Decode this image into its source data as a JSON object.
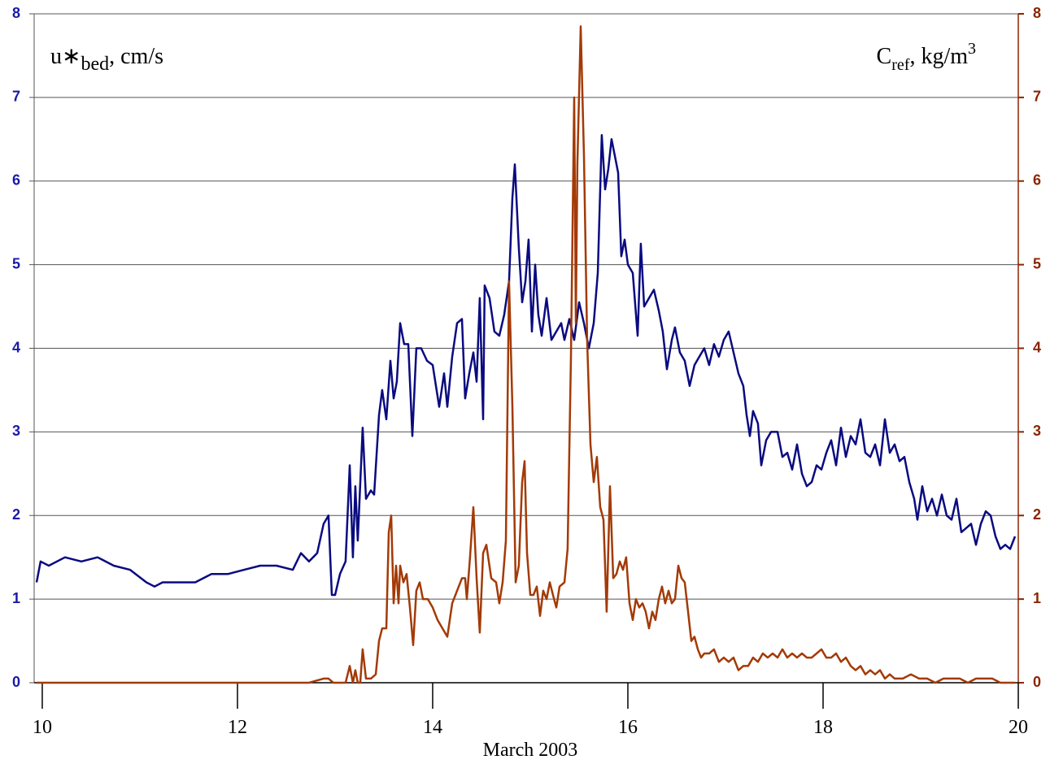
{
  "chart_data": {
    "type": "line",
    "xlabel": "March 2003",
    "ylabel": [
      "u∗",
      "bed",
      ", cm/s"
    ],
    "y2label": [
      "C",
      "ref",
      ", kg/m",
      "3"
    ],
    "xlim": [
      9.917,
      20
    ],
    "xticks": [
      10,
      12,
      14,
      16,
      18,
      20
    ],
    "ylim": [
      0,
      8
    ],
    "yticks": [
      0,
      1,
      2,
      3,
      4,
      5,
      6,
      7,
      8
    ],
    "y2lim": [
      0,
      8
    ],
    "y2ticks": [
      0,
      1,
      2,
      3,
      4,
      5,
      6,
      7,
      8
    ],
    "grid": true,
    "ycolor": "#1a1aa6",
    "y2color": "#8b2500",
    "series": [
      {
        "color": "#0a0a80",
        "axis": "y",
        "x": [
          9.942,
          9.983,
          10.067,
          10.233,
          10.4,
          10.567,
          10.733,
          10.9,
          11.067,
          11.15,
          11.233,
          11.4,
          11.567,
          11.733,
          11.9,
          12.067,
          12.233,
          12.4,
          12.567,
          12.65,
          12.733,
          12.817,
          12.883,
          12.933,
          12.967,
          13.0,
          13.05,
          13.108,
          13.15,
          13.183,
          13.208,
          13.233,
          13.283,
          13.317,
          13.367,
          13.4,
          13.45,
          13.483,
          13.525,
          13.567,
          13.6,
          13.633,
          13.667,
          13.708,
          13.75,
          13.792,
          13.833,
          13.883,
          13.942,
          14.0,
          14.067,
          14.117,
          14.15,
          14.2,
          14.25,
          14.3,
          14.333,
          14.375,
          14.417,
          14.45,
          14.483,
          14.517,
          14.533,
          14.583,
          14.633,
          14.683,
          14.733,
          14.783,
          14.817,
          14.842,
          14.883,
          14.917,
          14.95,
          14.983,
          15.017,
          15.05,
          15.083,
          15.117,
          15.167,
          15.217,
          15.267,
          15.317,
          15.35,
          15.4,
          15.45,
          15.5,
          15.55,
          15.6,
          15.65,
          15.692,
          15.733,
          15.767,
          15.8,
          15.833,
          15.867,
          15.9,
          15.933,
          15.967,
          16.0,
          16.05,
          16.1,
          16.133,
          16.167,
          16.217,
          16.267,
          16.317,
          16.358,
          16.4,
          16.45,
          16.483,
          16.533,
          16.583,
          16.633,
          16.683,
          16.733,
          16.783,
          16.833,
          16.883,
          16.933,
          16.983,
          17.033,
          17.083,
          17.133,
          17.183,
          17.217,
          17.25,
          17.283,
          17.333,
          17.367,
          17.417,
          17.467,
          17.533,
          17.583,
          17.633,
          17.683,
          17.733,
          17.783,
          17.833,
          17.883,
          17.933,
          17.983,
          18.033,
          18.083,
          18.133,
          18.183,
          18.233,
          18.283,
          18.333,
          18.383,
          18.433,
          18.483,
          18.533,
          18.583,
          18.633,
          18.683,
          18.733,
          18.783,
          18.833,
          18.883,
          18.933,
          18.967,
          19.017,
          19.067,
          19.117,
          19.167,
          19.217,
          19.267,
          19.317,
          19.367,
          19.417,
          19.467,
          19.517,
          19.567,
          19.617,
          19.667,
          19.717,
          19.767,
          19.817,
          19.867,
          19.917,
          19.967
        ],
        "values": [
          1.2,
          1.45,
          1.4,
          1.5,
          1.45,
          1.5,
          1.4,
          1.35,
          1.2,
          1.15,
          1.2,
          1.2,
          1.2,
          1.3,
          1.3,
          1.35,
          1.4,
          1.4,
          1.35,
          1.55,
          1.45,
          1.55,
          1.9,
          2.0,
          1.05,
          1.05,
          1.3,
          1.45,
          2.6,
          1.5,
          2.35,
          1.7,
          3.05,
          2.2,
          2.3,
          2.25,
          3.2,
          3.5,
          3.15,
          3.85,
          3.4,
          3.6,
          4.3,
          4.05,
          4.05,
          2.95,
          4.0,
          4.0,
          3.85,
          3.8,
          3.3,
          3.7,
          3.3,
          3.9,
          4.3,
          4.35,
          3.4,
          3.7,
          3.95,
          3.6,
          4.6,
          3.15,
          4.75,
          4.6,
          4.2,
          4.15,
          4.4,
          4.8,
          5.8,
          6.2,
          5.2,
          4.55,
          4.8,
          5.3,
          4.2,
          5.0,
          4.4,
          4.15,
          4.6,
          4.1,
          4.2,
          4.3,
          4.1,
          4.35,
          4.1,
          4.55,
          4.3,
          4.0,
          4.3,
          4.9,
          6.55,
          5.9,
          6.15,
          6.5,
          6.3,
          6.1,
          5.1,
          5.3,
          5.0,
          4.9,
          4.15,
          5.25,
          4.5,
          4.6,
          4.7,
          4.45,
          4.2,
          3.75,
          4.1,
          4.25,
          3.95,
          3.85,
          3.55,
          3.8,
          3.9,
          4.0,
          3.8,
          4.05,
          3.9,
          4.1,
          4.2,
          3.95,
          3.7,
          3.55,
          3.2,
          2.95,
          3.25,
          3.1,
          2.6,
          2.9,
          3.0,
          3.0,
          2.7,
          2.75,
          2.55,
          2.85,
          2.5,
          2.35,
          2.4,
          2.6,
          2.55,
          2.75,
          2.9,
          2.6,
          3.05,
          2.7,
          2.95,
          2.85,
          3.15,
          2.75,
          2.7,
          2.85,
          2.6,
          3.15,
          2.75,
          2.85,
          2.65,
          2.7,
          2.4,
          2.2,
          1.95,
          2.35,
          2.05,
          2.2,
          2.0,
          2.25,
          2.0,
          1.95,
          2.2,
          1.8,
          1.85,
          1.9,
          1.65,
          1.9,
          2.05,
          2.0,
          1.75,
          1.6,
          1.65,
          1.6,
          1.75
        ]
      },
      {
        "color": "#a33a06",
        "axis": "y2",
        "x": [
          9.942,
          10.4,
          11.233,
          12.067,
          12.733,
          12.883,
          12.933,
          12.983,
          13.108,
          13.15,
          13.183,
          13.208,
          13.233,
          13.258,
          13.283,
          13.317,
          13.367,
          13.417,
          13.45,
          13.483,
          13.525,
          13.55,
          13.575,
          13.6,
          13.625,
          13.65,
          13.667,
          13.7,
          13.733,
          13.767,
          13.8,
          13.833,
          13.867,
          13.9,
          13.95,
          14.0,
          14.05,
          14.1,
          14.15,
          14.2,
          14.25,
          14.3,
          14.333,
          14.35,
          14.383,
          14.417,
          14.45,
          14.483,
          14.517,
          14.55,
          14.6,
          14.65,
          14.683,
          14.717,
          14.75,
          14.783,
          14.817,
          14.85,
          14.883,
          14.917,
          14.942,
          14.967,
          15.0,
          15.033,
          15.067,
          15.1,
          15.133,
          15.167,
          15.2,
          15.233,
          15.267,
          15.3,
          15.35,
          15.383,
          15.417,
          15.45,
          15.467,
          15.483,
          15.517,
          15.55,
          15.583,
          15.617,
          15.65,
          15.683,
          15.717,
          15.75,
          15.783,
          15.817,
          15.85,
          15.883,
          15.917,
          15.95,
          15.983,
          16.017,
          16.05,
          16.083,
          16.117,
          16.15,
          16.183,
          16.217,
          16.25,
          16.283,
          16.317,
          16.35,
          16.383,
          16.417,
          16.45,
          16.483,
          16.517,
          16.55,
          16.583,
          16.617,
          16.65,
          16.683,
          16.717,
          16.75,
          16.783,
          16.833,
          16.883,
          16.933,
          16.983,
          17.033,
          17.083,
          17.133,
          17.183,
          17.233,
          17.283,
          17.333,
          17.383,
          17.433,
          17.483,
          17.533,
          17.583,
          17.633,
          17.683,
          17.733,
          17.783,
          17.833,
          17.883,
          17.933,
          17.983,
          18.033,
          18.083,
          18.133,
          18.183,
          18.233,
          18.283,
          18.333,
          18.383,
          18.433,
          18.483,
          18.533,
          18.583,
          18.633,
          18.683,
          18.733,
          18.817,
          18.9,
          18.983,
          19.067,
          19.15,
          19.233,
          19.317,
          19.4,
          19.483,
          19.567,
          19.65,
          19.733,
          19.817,
          19.967
        ],
        "values": [
          0,
          0,
          0,
          0,
          0,
          0.05,
          0.05,
          0,
          0,
          0.2,
          0,
          0.15,
          0,
          0,
          0.4,
          0.05,
          0.05,
          0.1,
          0.5,
          0.65,
          0.65,
          1.8,
          2.0,
          0.95,
          1.4,
          0.95,
          1.4,
          1.2,
          1.3,
          0.9,
          0.45,
          1.1,
          1.2,
          1.0,
          1.0,
          0.9,
          0.75,
          0.65,
          0.55,
          0.95,
          1.1,
          1.25,
          1.25,
          1.0,
          1.5,
          2.1,
          1.25,
          0.6,
          1.55,
          1.65,
          1.25,
          1.2,
          0.95,
          1.2,
          1.7,
          4.8,
          3.3,
          1.2,
          1.4,
          2.4,
          2.65,
          1.55,
          1.05,
          1.05,
          1.15,
          0.8,
          1.1,
          1.0,
          1.2,
          1.05,
          0.9,
          1.15,
          1.2,
          1.6,
          3.9,
          7.0,
          4.3,
          6.2,
          7.85,
          6.3,
          4.1,
          2.85,
          2.4,
          2.7,
          2.1,
          1.95,
          0.85,
          2.35,
          1.25,
          1.3,
          1.45,
          1.35,
          1.5,
          0.95,
          0.75,
          1.0,
          0.9,
          0.95,
          0.85,
          0.65,
          0.85,
          0.75,
          1.0,
          1.15,
          0.95,
          1.1,
          0.95,
          1.0,
          1.4,
          1.25,
          1.2,
          0.85,
          0.5,
          0.55,
          0.4,
          0.3,
          0.35,
          0.35,
          0.4,
          0.25,
          0.3,
          0.25,
          0.3,
          0.15,
          0.2,
          0.2,
          0.3,
          0.25,
          0.35,
          0.3,
          0.35,
          0.3,
          0.4,
          0.3,
          0.35,
          0.3,
          0.35,
          0.3,
          0.3,
          0.35,
          0.4,
          0.3,
          0.3,
          0.35,
          0.25,
          0.3,
          0.2,
          0.15,
          0.2,
          0.1,
          0.15,
          0.1,
          0.15,
          0.05,
          0.1,
          0.05,
          0.05,
          0.1,
          0.05,
          0.05,
          0,
          0.05,
          0.05,
          0.05,
          0,
          0.05,
          0.05,
          0.05,
          0,
          0
        ]
      }
    ]
  }
}
